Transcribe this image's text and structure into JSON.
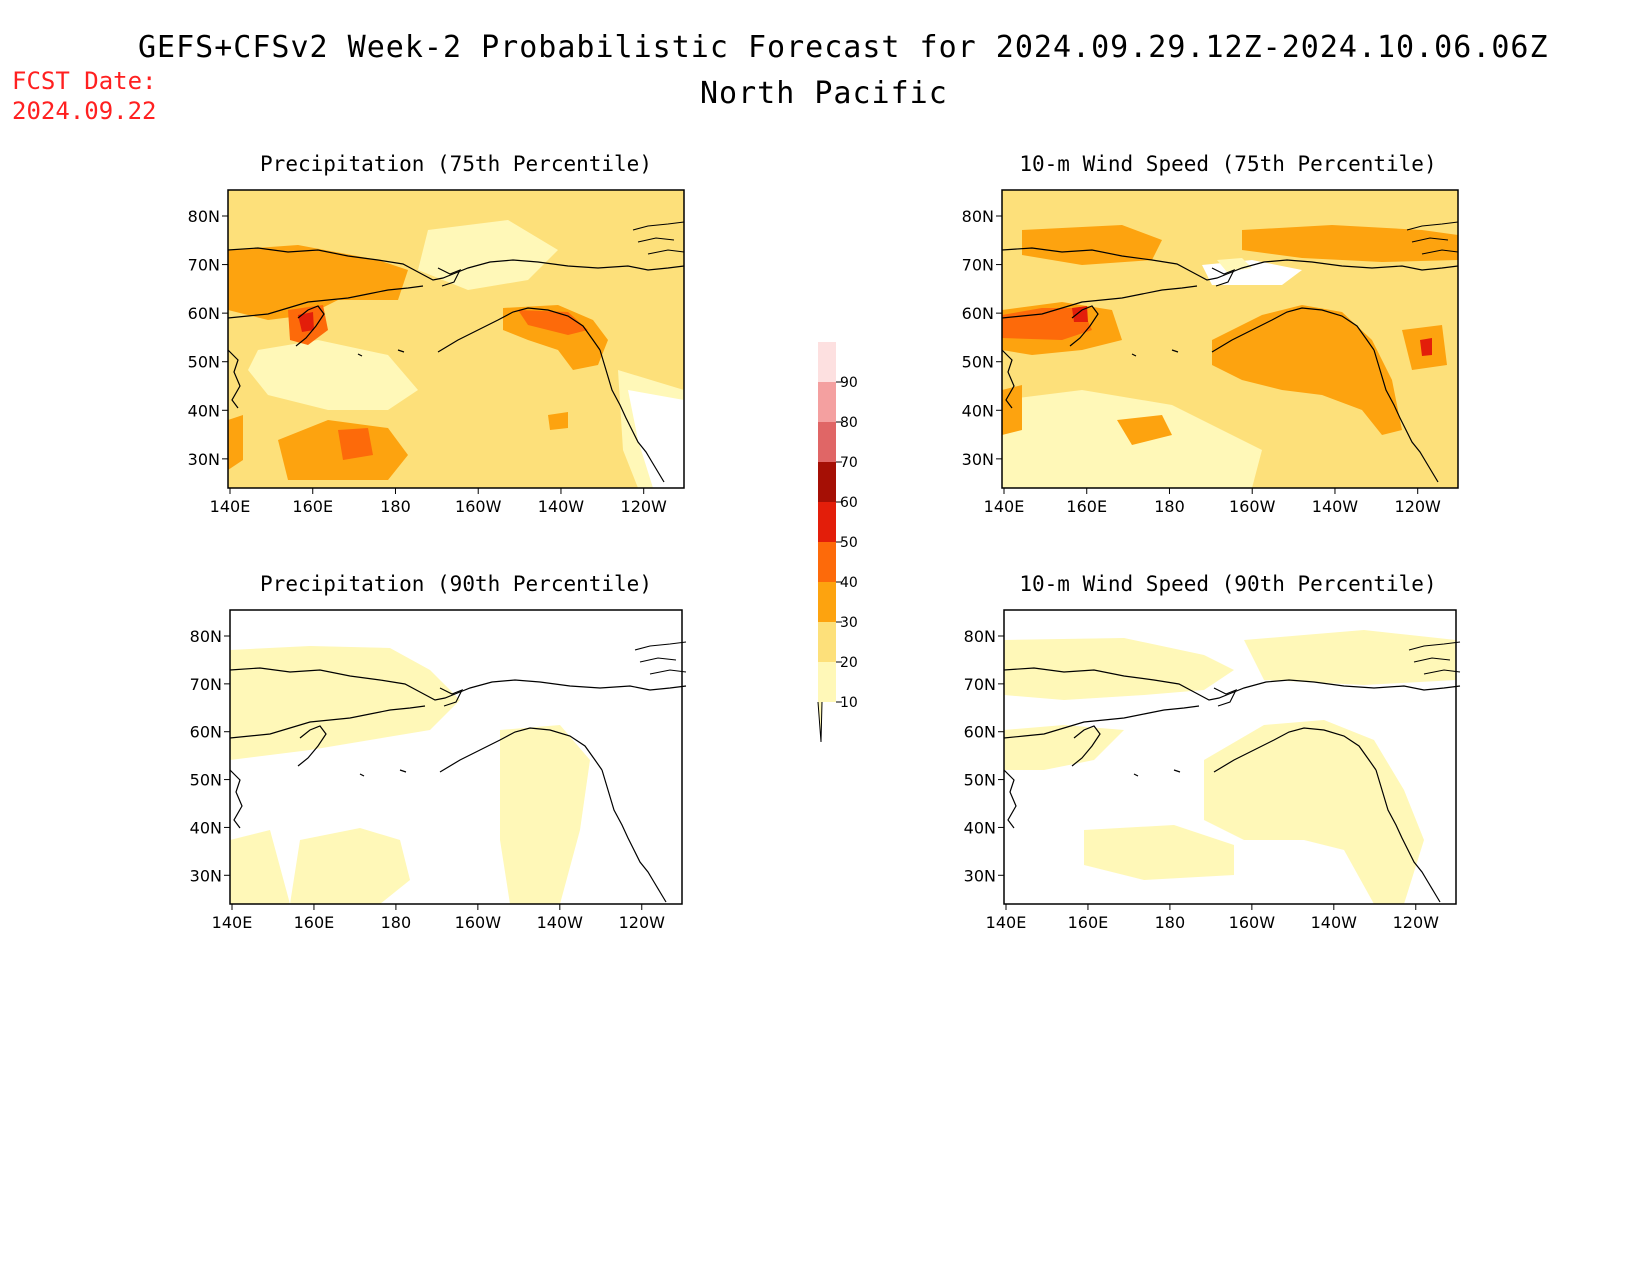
{
  "header": {
    "title_line1": "GEFS+CFSv2 Week-2 Probabilistic Forecast for 2024.09.29.12Z-2024.10.06.06Z",
    "title_line2": "North Pacific",
    "fcst_label": "FCST Date:",
    "fcst_date": "2024.09.22"
  },
  "panels": [
    {
      "id": "precip-75",
      "title": "Precipitation (75th Percentile)"
    },
    {
      "id": "wind-75",
      "title": "10-m Wind Speed (75th Percentile)"
    },
    {
      "id": "precip-90",
      "title": "Precipitation (90th Percentile)"
    },
    {
      "id": "wind-90",
      "title": "10-m Wind Speed (90th Percentile)"
    }
  ],
  "axes": {
    "lon_ticks": [
      "140E",
      "160E",
      "180",
      "160W",
      "140W",
      "120W"
    ],
    "lat_ticks": [
      "80N",
      "70N",
      "60N",
      "50N",
      "40N",
      "30N"
    ]
  },
  "colorbar": {
    "levels": [
      "10",
      "20",
      "30",
      "40",
      "50",
      "60",
      "70",
      "80",
      "90"
    ],
    "colors": [
      "#fff8b8",
      "#fde07a",
      "#fda30f",
      "#fd6a0a",
      "#e31e0a",
      "#a50f05",
      "#e06666",
      "#f4a0a0",
      "#fde0e0"
    ]
  }
}
